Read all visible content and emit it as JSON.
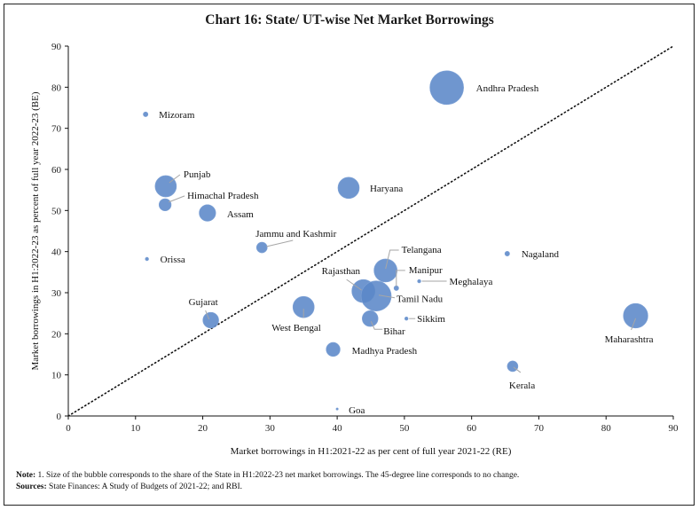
{
  "title": "Chart 16: State/ UT-wise Net Market Borrowings",
  "notes": {
    "note_label": "Note:",
    "note_text": "1. Size of the bubble corresponds to the share of the State in H1:2022-23 net market borrowings. The 45-degree line corresponds to no change.",
    "sources_label": "Sources:",
    "sources_text": "State Finances: A Study of Budgets of 2021-22; and RBI."
  },
  "colors": {
    "bubble": "#5b87c8",
    "reference_line": "#111111",
    "axis": "#111111"
  },
  "chart_data": {
    "type": "scatter",
    "subtype": "bubble",
    "title": "Chart 16: State/ UT-wise Net Market Borrowings",
    "xlabel": "Market borrowings in H1:2021-22 as per cent of full year 2021-22 (RE)",
    "ylabel": "Market borrowings in H1:2022-23 as percent of full year 2022-23 (BE)",
    "xlim": [
      0,
      90
    ],
    "ylim": [
      0,
      90
    ],
    "xticks": [
      0,
      10,
      20,
      30,
      40,
      50,
      60,
      70,
      80,
      90
    ],
    "yticks": [
      0,
      10,
      20,
      30,
      40,
      50,
      60,
      70,
      80,
      90
    ],
    "grid": false,
    "legend": "none",
    "reference_line": {
      "type": "45-degree",
      "from": [
        0,
        0
      ],
      "to": [
        90,
        90
      ],
      "style": "dotted"
    },
    "size_meaning": "Share of the State in H1:2022-23 net market borrowings (relative)",
    "points": [
      {
        "name": "Andhra Pradesh",
        "x": 56.3,
        "y": 79.9,
        "size": 10.0
      },
      {
        "name": "Mizoram",
        "x": 11.5,
        "y": 73.4,
        "size": 0.2
      },
      {
        "name": "Punjab",
        "x": 14.5,
        "y": 55.9,
        "size": 4.0
      },
      {
        "name": "Himachal Pradesh",
        "x": 14.4,
        "y": 51.4,
        "size": 1.3
      },
      {
        "name": "Haryana",
        "x": 41.7,
        "y": 55.5,
        "size": 4.0
      },
      {
        "name": "Assam",
        "x": 20.7,
        "y": 49.4,
        "size": 2.4
      },
      {
        "name": "Jammu and Kashmir",
        "x": 28.8,
        "y": 41.0,
        "size": 1.0
      },
      {
        "name": "Orissa",
        "x": 11.7,
        "y": 38.2,
        "size": 0.1
      },
      {
        "name": "Nagaland",
        "x": 65.3,
        "y": 39.5,
        "size": 0.2
      },
      {
        "name": "Telangana",
        "x": 47.2,
        "y": 35.4,
        "size": 4.7
      },
      {
        "name": "Manipur",
        "x": 48.8,
        "y": 31.1,
        "size": 0.2
      },
      {
        "name": "Meghalaya",
        "x": 52.2,
        "y": 32.8,
        "size": 0.1
      },
      {
        "name": "Rajasthan",
        "x": 43.9,
        "y": 30.4,
        "size": 4.7
      },
      {
        "name": "Tamil Nadu",
        "x": 45.8,
        "y": 29.2,
        "size": 8.0
      },
      {
        "name": "West Bengal",
        "x": 35.0,
        "y": 26.5,
        "size": 4.0
      },
      {
        "name": "Gujarat",
        "x": 21.2,
        "y": 23.3,
        "size": 2.2
      },
      {
        "name": "Bihar",
        "x": 44.9,
        "y": 23.7,
        "size": 2.2
      },
      {
        "name": "Sikkim",
        "x": 50.3,
        "y": 23.7,
        "size": 0.1
      },
      {
        "name": "Maharashtra",
        "x": 84.4,
        "y": 24.4,
        "size": 5.3
      },
      {
        "name": "Madhya Pradesh",
        "x": 39.4,
        "y": 16.2,
        "size": 1.7
      },
      {
        "name": "Kerala",
        "x": 66.1,
        "y": 12.1,
        "size": 1.0
      },
      {
        "name": "Goa",
        "x": 40.0,
        "y": 1.7,
        "size": 0.02
      }
    ]
  }
}
